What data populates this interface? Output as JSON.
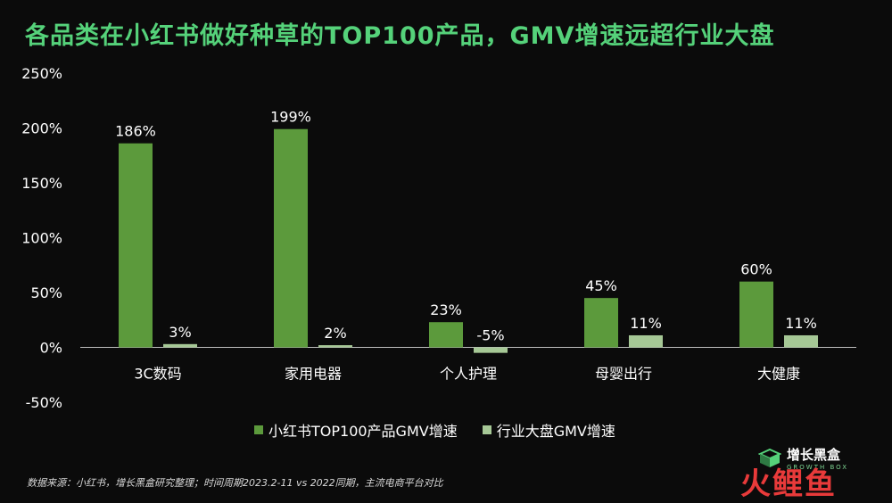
{
  "title": "各品类在小红书做好种草的TOP100产品，GMV增速远超行业大盘",
  "footnote": "数据来源：小红书，增长黑盒研究整理；时间周期2023.2-11 vs 2022同期，主流电商平台对比",
  "brand": {
    "name": "增长黑盒",
    "sub": "GROWTH BOX"
  },
  "corner_logo": "火鲤鱼",
  "colors": {
    "background": "#0b0b0b",
    "title": "#55d27a",
    "series1": "#5c9a3c",
    "series2": "#a6c896"
  },
  "chart_data": {
    "type": "bar",
    "categories": [
      "3C数码",
      "家用电器",
      "个人护理",
      "母婴出行",
      "大健康"
    ],
    "series": [
      {
        "name": "小红书TOP100产品GMV增速",
        "values": [
          186,
          199,
          23,
          45,
          60
        ],
        "labels": [
          "186%",
          "199%",
          "23%",
          "45%",
          "60%"
        ]
      },
      {
        "name": "行业大盘GMV增速",
        "values": [
          3,
          2,
          -5,
          11,
          11
        ],
        "labels": [
          "3%",
          "2%",
          "-5%",
          "11%",
          "11%"
        ]
      }
    ],
    "ylim": [
      -50,
      250
    ],
    "yticks": [
      250,
      200,
      150,
      100,
      50,
      0,
      -50
    ],
    "ytick_labels": [
      "250%",
      "200%",
      "150%",
      "100%",
      "50%",
      "0%",
      "-50%"
    ],
    "legend_position": "bottom",
    "grid": false
  }
}
